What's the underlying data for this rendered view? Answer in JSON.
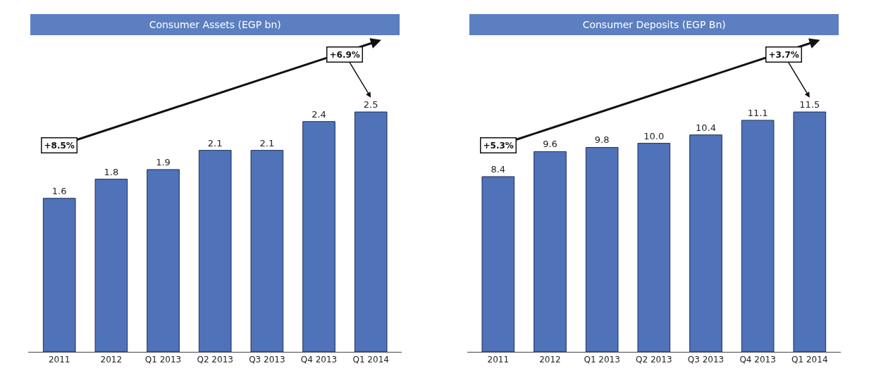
{
  "chart_data": [
    {
      "type": "bar",
      "title": "Consumer Assets (EGP bn)",
      "categories": [
        "2011",
        "2012",
        "Q1 2013",
        "Q2 2013",
        "Q3 2013",
        "Q4 2013",
        "Q1 2014"
      ],
      "values": [
        1.6,
        1.8,
        1.9,
        2.1,
        2.1,
        2.4,
        2.5
      ],
      "value_labels": [
        "1.6",
        "1.8",
        "1.9",
        "2.1",
        "2.1",
        "2.4",
        "2.5"
      ],
      "color": "#4f72b8",
      "annotations": [
        "+8.5%",
        "+6.9%"
      ]
    },
    {
      "type": "bar",
      "title": "Consumer Deposits (EGP Bn)",
      "categories": [
        "2011",
        "2012",
        "Q1 2013",
        "Q2 2013",
        "Q3 2013",
        "Q4 2013",
        "Q1 2014"
      ],
      "values": [
        8.4,
        9.6,
        9.8,
        10.0,
        10.4,
        11.1,
        11.5
      ],
      "value_labels": [
        "8.4",
        "9.6",
        "9.8",
        "10.0",
        "10.4",
        "11.1",
        "11.5"
      ],
      "color": "#4f72b8",
      "annotations": [
        "+5.3%",
        "+3.7%"
      ]
    }
  ]
}
